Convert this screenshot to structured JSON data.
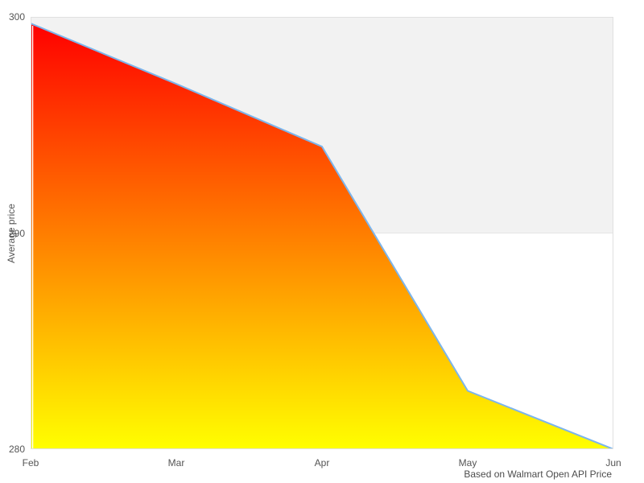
{
  "caption": "Based on Walmart Open API Price",
  "colors": {
    "line": "#7cb5ec",
    "gradient_top": "#ff0000",
    "gradient_bottom": "#ffff00",
    "band_fill": "#f2f2f2",
    "plot_border": "#e0e0e0",
    "label_text": "#555555"
  },
  "chart_data": {
    "type": "area",
    "title": "",
    "xlabel": "",
    "ylabel": "Average price",
    "categories": [
      "Feb",
      "Mar",
      "Apr",
      "May",
      "Jun"
    ],
    "values": [
      299.7,
      296.9,
      294,
      282.7,
      280
    ],
    "ylim": [
      280,
      300
    ],
    "y_ticks": [
      300,
      290,
      280
    ],
    "legend": "none",
    "grid": "shaded horizontal band between y=290 and y=300",
    "annotations": [
      "Based on Walmart Open API Price"
    ]
  }
}
